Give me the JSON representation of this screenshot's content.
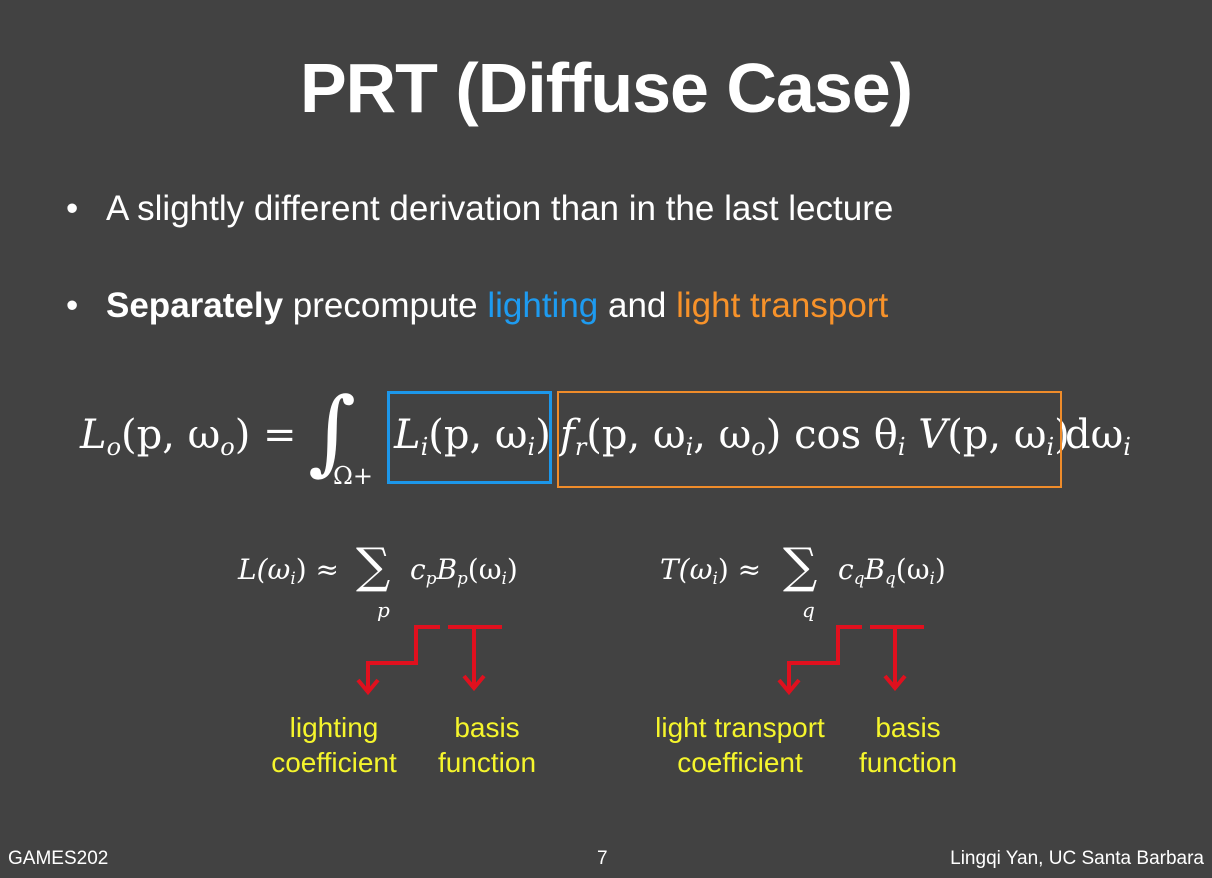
{
  "slide": {
    "title": "PRT (Diffuse Case)",
    "bullets": [
      {
        "text": "A slightly different derivation than in the last lecture"
      },
      {
        "bold": "Separately",
        "pre": " precompute ",
        "lighting": "lighting",
        "and": " and ",
        "transport": "light transport"
      }
    ],
    "equation": {
      "lhs": "L",
      "lhs_sub": "o",
      "lhs_args": "(p, ω",
      "lhs_args_sub": "o",
      "lhs_close": ") =",
      "integral": "∫",
      "domain": "Ω+",
      "lighting_term": "L",
      "lighting_sub": "i",
      "lighting_args": "(p, ω",
      "lighting_args_sub": "i",
      "lighting_close": ")",
      "brdf": "f",
      "brdf_sub": "r",
      "brdf_args": "(p, ω",
      "brdf_args_sub1": "i",
      "brdf_args_mid": ", ω",
      "brdf_args_sub2": "o",
      "brdf_close": ")",
      "cos": "cos θ",
      "cos_sub": "i",
      "vis": "V",
      "vis_args": "(p, ω",
      "vis_args_sub": "i",
      "vis_close": ")",
      "measure": "dω",
      "measure_sub": "i"
    },
    "left_expansion": {
      "lhs": "L(ω",
      "lhs_sub": "i",
      "approx": ") ≈",
      "sum": "∑",
      "sum_index": "p",
      "coef": "c",
      "coef_sub": "p",
      "basis": "B",
      "basis_sub": "p",
      "args": "(ω",
      "args_sub": "i",
      "close": ")"
    },
    "right_expansion": {
      "lhs": "T(ω",
      "lhs_sub": "i",
      "approx": ") ≈",
      "sum": "∑",
      "sum_index": "q",
      "coef": "c",
      "coef_sub": "q",
      "basis": "B",
      "basis_sub": "q",
      "args": "(ω",
      "args_sub": "i",
      "close": ")"
    },
    "labels": {
      "lighting_coefficient": [
        "lighting",
        "coefficient"
      ],
      "basis_function_left": [
        "basis",
        "function"
      ],
      "transport_coefficient": [
        "light transport",
        "coefficient"
      ],
      "basis_function_right": [
        "basis",
        "function"
      ]
    },
    "footer": {
      "left": "GAMES202",
      "page": "7",
      "right": "Lingqi Yan, UC Santa Barbara"
    },
    "colors": {
      "background": "#424242",
      "lighting": "#1e9bf0",
      "transport": "#f7922a",
      "label": "#f5f52c",
      "arrow": "#e0101e"
    }
  }
}
